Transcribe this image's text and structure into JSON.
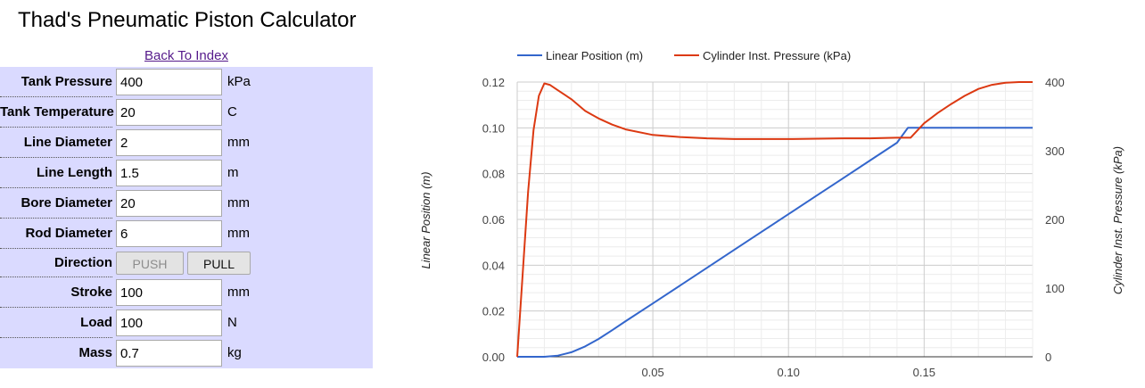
{
  "page": {
    "title": "Thad's Pneumatic Piston Calculator",
    "back_link": "Back To Index"
  },
  "form": {
    "tank_pressure": {
      "label": "Tank Pressure",
      "value": "400",
      "unit": "kPa"
    },
    "tank_temperature": {
      "label": "Tank Temperature",
      "value": "20",
      "unit": "C"
    },
    "line_diameter": {
      "label": "Line Diameter",
      "value": "2",
      "unit": "mm"
    },
    "line_length": {
      "label": "Line Length",
      "value": "1.5",
      "unit": "m"
    },
    "bore_diameter": {
      "label": "Bore Diameter",
      "value": "20",
      "unit": "mm"
    },
    "rod_diameter": {
      "label": "Rod Diameter",
      "value": "6",
      "unit": "mm"
    },
    "direction": {
      "label": "Direction",
      "options": [
        "PUSH",
        "PULL"
      ],
      "selected": "PUSH"
    },
    "stroke": {
      "label": "Stroke",
      "value": "100",
      "unit": "mm"
    },
    "load": {
      "label": "Load",
      "value": "100",
      "unit": "N"
    },
    "mass": {
      "label": "Mass",
      "value": "0.7",
      "unit": "kg"
    }
  },
  "colors": {
    "panel_bg": "#dadaff",
    "series_position": "#3366cc",
    "series_pressure": "#dc3912",
    "link": "#551a8b"
  },
  "chart_data": {
    "type": "line",
    "title": "",
    "xlabel": "",
    "x_ticks": [
      "0.05",
      "0.10",
      "0.15"
    ],
    "xlim": [
      0,
      0.19
    ],
    "left_axis": {
      "label": "Linear Position (m)",
      "ylim": [
        0,
        0.12
      ],
      "ticks": [
        "0.00",
        "0.02",
        "0.04",
        "0.06",
        "0.08",
        "0.10",
        "0.12"
      ]
    },
    "right_axis": {
      "label": "Cylinder Inst. Pressure (kPa)",
      "ylim": [
        0,
        400
      ],
      "ticks": [
        "0",
        "100",
        "200",
        "300",
        "400"
      ]
    },
    "legend_position": "top",
    "series": [
      {
        "name": "Linear Position (m)",
        "axis": "left",
        "color": "#3366cc",
        "x": [
          0,
          0.01,
          0.015,
          0.02,
          0.025,
          0.03,
          0.035,
          0.04,
          0.05,
          0.06,
          0.07,
          0.08,
          0.09,
          0.1,
          0.11,
          0.12,
          0.13,
          0.14,
          0.144,
          0.15,
          0.16,
          0.17,
          0.18,
          0.19
        ],
        "values": [
          0,
          0,
          0.0005,
          0.002,
          0.0045,
          0.0078,
          0.0116,
          0.0156,
          0.0233,
          0.0311,
          0.0389,
          0.0467,
          0.0545,
          0.0623,
          0.0701,
          0.0779,
          0.0857,
          0.0935,
          0.1,
          0.1,
          0.1,
          0.1,
          0.1,
          0.1
        ]
      },
      {
        "name": "Cylinder Inst. Pressure (kPa)",
        "axis": "right",
        "color": "#dc3912",
        "x": [
          0,
          0.002,
          0.004,
          0.006,
          0.008,
          0.01,
          0.012,
          0.015,
          0.02,
          0.025,
          0.03,
          0.035,
          0.04,
          0.05,
          0.06,
          0.07,
          0.08,
          0.1,
          0.12,
          0.13,
          0.14,
          0.145,
          0.15,
          0.155,
          0.16,
          0.165,
          0.17,
          0.175,
          0.18,
          0.185,
          0.19
        ],
        "values": [
          0,
          120,
          240,
          330,
          380,
          398,
          396,
          388,
          375,
          358,
          347,
          338,
          331,
          323,
          320,
          318,
          317,
          317,
          318,
          318,
          319,
          319,
          340,
          355,
          368,
          380,
          390,
          396,
          399,
          400,
          400
        ]
      }
    ]
  }
}
